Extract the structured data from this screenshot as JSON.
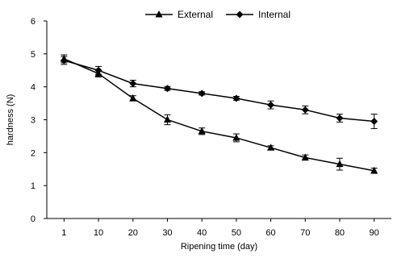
{
  "chart_data": {
    "type": "line",
    "title": "",
    "xlabel": "Ripening time (day)",
    "ylabel": "hardness (N)",
    "categories": [
      "1",
      "10",
      "20",
      "30",
      "40",
      "50",
      "60",
      "70",
      "80",
      "90"
    ],
    "ylim": [
      0,
      6
    ],
    "yticks": [
      "0",
      "1",
      "2",
      "3",
      "4",
      "5",
      "6"
    ],
    "grid": false,
    "legend_position": "top",
    "series": [
      {
        "name": "External",
        "marker": "triangle",
        "color": "#000000",
        "values": [
          4.85,
          4.4,
          3.65,
          3.0,
          2.65,
          2.45,
          2.15,
          1.85,
          1.65,
          1.45
        ],
        "errors": [
          0.12,
          0.1,
          0.08,
          0.15,
          0.1,
          0.12,
          0.06,
          0.08,
          0.18,
          0.08
        ]
      },
      {
        "name": "Internal",
        "marker": "diamond",
        "color": "#000000",
        "values": [
          4.8,
          4.5,
          4.1,
          3.95,
          3.8,
          3.65,
          3.45,
          3.3,
          3.05,
          2.95
        ],
        "errors": [
          0.12,
          0.12,
          0.1,
          0.06,
          0.05,
          0.06,
          0.12,
          0.12,
          0.12,
          0.22
        ]
      }
    ]
  }
}
